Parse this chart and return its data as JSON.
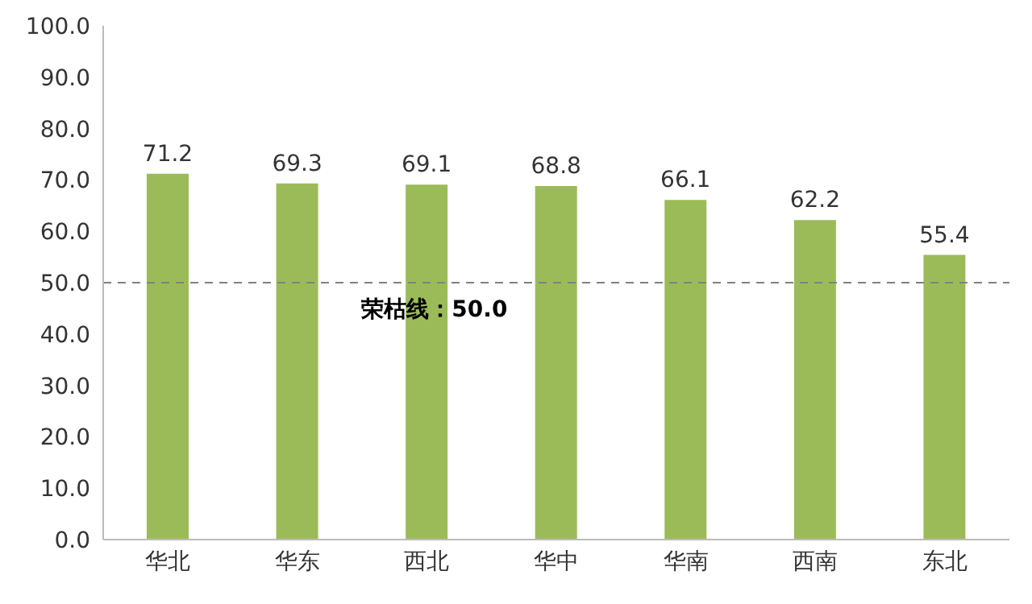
{
  "chart_data": {
    "type": "bar",
    "categories": [
      "华北",
      "华东",
      "西北",
      "华中",
      "华南",
      "西南",
      "东北"
    ],
    "values": [
      71.2,
      69.3,
      69.1,
      68.8,
      66.1,
      62.2,
      55.4
    ],
    "color": "#9bbb59",
    "ylim": [
      0,
      100
    ],
    "yticks": [
      {
        "value": 0,
        "label": "0.0"
      },
      {
        "value": 10,
        "label": "10.0"
      },
      {
        "value": 20,
        "label": "20.0"
      },
      {
        "value": 30,
        "label": "30.0"
      },
      {
        "value": 40,
        "label": "40.0"
      },
      {
        "value": 50,
        "label": "50.0"
      },
      {
        "value": 60,
        "label": "60.0"
      },
      {
        "value": 70,
        "label": "70.0"
      },
      {
        "value": 80,
        "label": "80.0"
      },
      {
        "value": 90,
        "label": "90.0"
      },
      {
        "value": 100,
        "label": "100.0"
      }
    ],
    "data_labels": true,
    "grid": false,
    "legend": false,
    "ref_lines": [
      {
        "axis": "y",
        "value": 50,
        "label": "荣枯线：50.0",
        "color": "#808080",
        "line_style": "dashed"
      }
    ]
  }
}
